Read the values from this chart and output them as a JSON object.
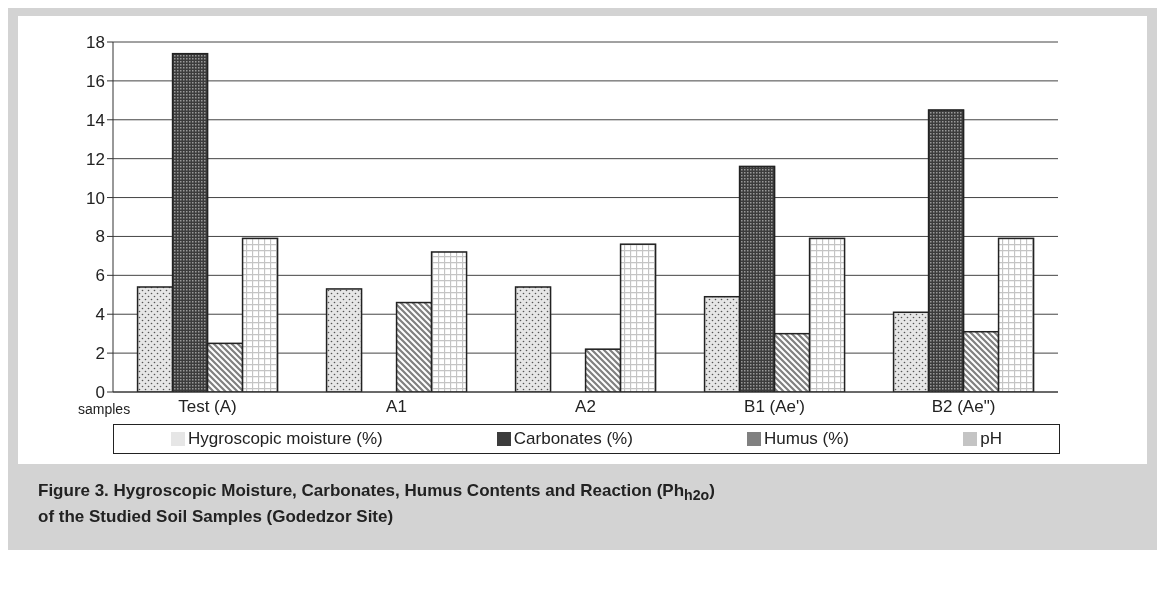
{
  "chart_data": {
    "type": "bar",
    "title": "Figure 3.  Hygroscopic Moisture, Carbonates, Humus Contents and Reaction (Ph$_{h2o}$) of the Studied Soil Samples (Godedzor Site)",
    "xlabel": "samples",
    "categories": [
      "Test (A)",
      "A1",
      "A2",
      "B1 (Ae')",
      "B2 (Ae\")"
    ],
    "series": [
      {
        "name": "Hygroscopic moisture (%)",
        "color": "#e6e6e6",
        "values": [
          5.4,
          5.3,
          5.4,
          4.9,
          4.1
        ]
      },
      {
        "name": "Carbonates (%)",
        "color": "#3c3c3c",
        "values": [
          17.4,
          null,
          null,
          11.6,
          14.5
        ]
      },
      {
        "name": "Humus (%)",
        "color": "#808080",
        "values": [
          2.5,
          4.6,
          2.2,
          3.0,
          3.1
        ]
      },
      {
        "name": "pH",
        "color": "#c4c4c4",
        "values": [
          7.9,
          7.2,
          7.6,
          7.9,
          7.9
        ]
      }
    ],
    "ylim": [
      0,
      18
    ],
    "yticks": [
      0,
      2,
      4,
      6,
      8,
      10,
      12,
      14,
      16,
      18
    ],
    "grid": "y",
    "legend": "bottom"
  }
}
